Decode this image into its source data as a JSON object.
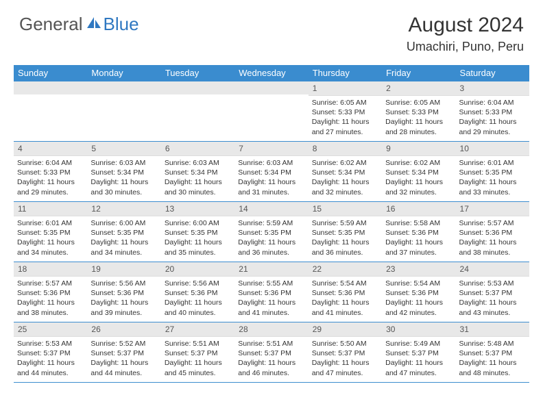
{
  "brand": {
    "general": "General",
    "blue": "Blue"
  },
  "title": "August 2024",
  "location": "Umachiri, Puno, Peru",
  "colors": {
    "header_bg": "#3a8ccf",
    "header_text": "#ffffff",
    "daynum_bg": "#e8e8e8",
    "text": "#333333",
    "brand_blue": "#2f78c1",
    "brand_gray": "#555555"
  },
  "dow": [
    "Sunday",
    "Monday",
    "Tuesday",
    "Wednesday",
    "Thursday",
    "Friday",
    "Saturday"
  ],
  "weeks": [
    [
      null,
      null,
      null,
      null,
      {
        "n": "1",
        "sr": "Sunrise: 6:05 AM",
        "ss": "Sunset: 5:33 PM",
        "d1": "Daylight: 11 hours",
        "d2": "and 27 minutes."
      },
      {
        "n": "2",
        "sr": "Sunrise: 6:05 AM",
        "ss": "Sunset: 5:33 PM",
        "d1": "Daylight: 11 hours",
        "d2": "and 28 minutes."
      },
      {
        "n": "3",
        "sr": "Sunrise: 6:04 AM",
        "ss": "Sunset: 5:33 PM",
        "d1": "Daylight: 11 hours",
        "d2": "and 29 minutes."
      }
    ],
    [
      {
        "n": "4",
        "sr": "Sunrise: 6:04 AM",
        "ss": "Sunset: 5:33 PM",
        "d1": "Daylight: 11 hours",
        "d2": "and 29 minutes."
      },
      {
        "n": "5",
        "sr": "Sunrise: 6:03 AM",
        "ss": "Sunset: 5:34 PM",
        "d1": "Daylight: 11 hours",
        "d2": "and 30 minutes."
      },
      {
        "n": "6",
        "sr": "Sunrise: 6:03 AM",
        "ss": "Sunset: 5:34 PM",
        "d1": "Daylight: 11 hours",
        "d2": "and 30 minutes."
      },
      {
        "n": "7",
        "sr": "Sunrise: 6:03 AM",
        "ss": "Sunset: 5:34 PM",
        "d1": "Daylight: 11 hours",
        "d2": "and 31 minutes."
      },
      {
        "n": "8",
        "sr": "Sunrise: 6:02 AM",
        "ss": "Sunset: 5:34 PM",
        "d1": "Daylight: 11 hours",
        "d2": "and 32 minutes."
      },
      {
        "n": "9",
        "sr": "Sunrise: 6:02 AM",
        "ss": "Sunset: 5:34 PM",
        "d1": "Daylight: 11 hours",
        "d2": "and 32 minutes."
      },
      {
        "n": "10",
        "sr": "Sunrise: 6:01 AM",
        "ss": "Sunset: 5:35 PM",
        "d1": "Daylight: 11 hours",
        "d2": "and 33 minutes."
      }
    ],
    [
      {
        "n": "11",
        "sr": "Sunrise: 6:01 AM",
        "ss": "Sunset: 5:35 PM",
        "d1": "Daylight: 11 hours",
        "d2": "and 34 minutes."
      },
      {
        "n": "12",
        "sr": "Sunrise: 6:00 AM",
        "ss": "Sunset: 5:35 PM",
        "d1": "Daylight: 11 hours",
        "d2": "and 34 minutes."
      },
      {
        "n": "13",
        "sr": "Sunrise: 6:00 AM",
        "ss": "Sunset: 5:35 PM",
        "d1": "Daylight: 11 hours",
        "d2": "and 35 minutes."
      },
      {
        "n": "14",
        "sr": "Sunrise: 5:59 AM",
        "ss": "Sunset: 5:35 PM",
        "d1": "Daylight: 11 hours",
        "d2": "and 36 minutes."
      },
      {
        "n": "15",
        "sr": "Sunrise: 5:59 AM",
        "ss": "Sunset: 5:35 PM",
        "d1": "Daylight: 11 hours",
        "d2": "and 36 minutes."
      },
      {
        "n": "16",
        "sr": "Sunrise: 5:58 AM",
        "ss": "Sunset: 5:36 PM",
        "d1": "Daylight: 11 hours",
        "d2": "and 37 minutes."
      },
      {
        "n": "17",
        "sr": "Sunrise: 5:57 AM",
        "ss": "Sunset: 5:36 PM",
        "d1": "Daylight: 11 hours",
        "d2": "and 38 minutes."
      }
    ],
    [
      {
        "n": "18",
        "sr": "Sunrise: 5:57 AM",
        "ss": "Sunset: 5:36 PM",
        "d1": "Daylight: 11 hours",
        "d2": "and 38 minutes."
      },
      {
        "n": "19",
        "sr": "Sunrise: 5:56 AM",
        "ss": "Sunset: 5:36 PM",
        "d1": "Daylight: 11 hours",
        "d2": "and 39 minutes."
      },
      {
        "n": "20",
        "sr": "Sunrise: 5:56 AM",
        "ss": "Sunset: 5:36 PM",
        "d1": "Daylight: 11 hours",
        "d2": "and 40 minutes."
      },
      {
        "n": "21",
        "sr": "Sunrise: 5:55 AM",
        "ss": "Sunset: 5:36 PM",
        "d1": "Daylight: 11 hours",
        "d2": "and 41 minutes."
      },
      {
        "n": "22",
        "sr": "Sunrise: 5:54 AM",
        "ss": "Sunset: 5:36 PM",
        "d1": "Daylight: 11 hours",
        "d2": "and 41 minutes."
      },
      {
        "n": "23",
        "sr": "Sunrise: 5:54 AM",
        "ss": "Sunset: 5:36 PM",
        "d1": "Daylight: 11 hours",
        "d2": "and 42 minutes."
      },
      {
        "n": "24",
        "sr": "Sunrise: 5:53 AM",
        "ss": "Sunset: 5:37 PM",
        "d1": "Daylight: 11 hours",
        "d2": "and 43 minutes."
      }
    ],
    [
      {
        "n": "25",
        "sr": "Sunrise: 5:53 AM",
        "ss": "Sunset: 5:37 PM",
        "d1": "Daylight: 11 hours",
        "d2": "and 44 minutes."
      },
      {
        "n": "26",
        "sr": "Sunrise: 5:52 AM",
        "ss": "Sunset: 5:37 PM",
        "d1": "Daylight: 11 hours",
        "d2": "and 44 minutes."
      },
      {
        "n": "27",
        "sr": "Sunrise: 5:51 AM",
        "ss": "Sunset: 5:37 PM",
        "d1": "Daylight: 11 hours",
        "d2": "and 45 minutes."
      },
      {
        "n": "28",
        "sr": "Sunrise: 5:51 AM",
        "ss": "Sunset: 5:37 PM",
        "d1": "Daylight: 11 hours",
        "d2": "and 46 minutes."
      },
      {
        "n": "29",
        "sr": "Sunrise: 5:50 AM",
        "ss": "Sunset: 5:37 PM",
        "d1": "Daylight: 11 hours",
        "d2": "and 47 minutes."
      },
      {
        "n": "30",
        "sr": "Sunrise: 5:49 AM",
        "ss": "Sunset: 5:37 PM",
        "d1": "Daylight: 11 hours",
        "d2": "and 47 minutes."
      },
      {
        "n": "31",
        "sr": "Sunrise: 5:48 AM",
        "ss": "Sunset: 5:37 PM",
        "d1": "Daylight: 11 hours",
        "d2": "and 48 minutes."
      }
    ]
  ]
}
